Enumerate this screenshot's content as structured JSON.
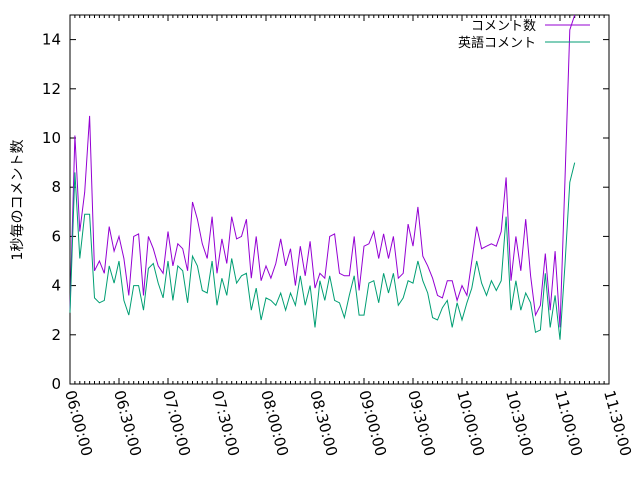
{
  "chart_data": {
    "type": "line",
    "ylabel": "1秒毎のコメント数",
    "xlabel": "",
    "ylim": [
      0,
      15
    ],
    "yticks": [
      0,
      2,
      4,
      6,
      8,
      10,
      12,
      14
    ],
    "xlim": [
      "06:00:00",
      "11:30:00"
    ],
    "xtick_labels": [
      "06:00:00",
      "06:30:00",
      "07:00:00",
      "07:30:00",
      "08:00:00",
      "08:30:00",
      "09:00:00",
      "09:30:00",
      "10:00:00",
      "10:30:00",
      "11:00:00",
      "11:30:00"
    ],
    "legend_position": "top-right",
    "grid": false,
    "x_interval_minutes": 3,
    "series": [
      {
        "name": "コメント数",
        "color": "#9400d3",
        "values": [
          3.0,
          10.1,
          6.2,
          7.8,
          10.9,
          4.6,
          5.0,
          4.5,
          6.4,
          5.4,
          6.0,
          5.1,
          3.6,
          6.0,
          6.1,
          3.6,
          6.0,
          5.5,
          4.8,
          4.5,
          6.2,
          4.8,
          5.7,
          5.5,
          4.6,
          7.4,
          6.7,
          5.7,
          5.1,
          6.8,
          4.5,
          5.9,
          4.9,
          6.8,
          5.9,
          6.0,
          6.7,
          4.3,
          6.0,
          4.2,
          4.8,
          4.3,
          4.9,
          5.9,
          4.8,
          5.5,
          4.0,
          5.6,
          4.4,
          5.8,
          3.9,
          4.5,
          4.3,
          6.0,
          6.1,
          4.5,
          4.4,
          4.4,
          6.0,
          3.8,
          5.6,
          5.7,
          6.2,
          5.1,
          6.1,
          5.1,
          6.0,
          4.3,
          4.5,
          6.5,
          5.6,
          7.2,
          5.2,
          4.8,
          4.3,
          3.6,
          3.5,
          4.2,
          4.2,
          3.4,
          4.0,
          3.6,
          5.0,
          6.4,
          5.5,
          5.6,
          5.7,
          5.6,
          6.2,
          8.4,
          4.2,
          6.0,
          4.6,
          6.7,
          4.4,
          2.8,
          3.2,
          5.3,
          3.0,
          5.4,
          2.3,
          8.2,
          14.4,
          15.0
        ]
      },
      {
        "name": "英語コメント",
        "color": "#009e73",
        "values": [
          2.9,
          8.6,
          5.1,
          6.9,
          6.9,
          3.5,
          3.3,
          3.4,
          4.8,
          4.1,
          5.0,
          3.4,
          2.8,
          4.0,
          4.0,
          3.0,
          4.7,
          4.9,
          4.1,
          3.5,
          5.0,
          3.4,
          4.8,
          4.6,
          3.3,
          5.2,
          4.8,
          3.8,
          3.7,
          5.0,
          3.2,
          4.3,
          3.6,
          5.1,
          4.1,
          4.4,
          4.5,
          3.0,
          3.9,
          2.6,
          3.5,
          3.4,
          3.2,
          3.7,
          3.0,
          3.7,
          3.2,
          4.4,
          3.2,
          4.0,
          2.3,
          4.2,
          3.4,
          4.4,
          3.4,
          3.3,
          2.7,
          3.6,
          4.4,
          2.8,
          2.8,
          4.1,
          4.2,
          3.3,
          4.5,
          3.7,
          4.5,
          3.2,
          3.5,
          4.2,
          4.1,
          5.0,
          4.2,
          3.7,
          2.7,
          2.6,
          3.1,
          3.4,
          2.3,
          3.3,
          2.6,
          3.3,
          3.9,
          5.0,
          4.1,
          3.6,
          4.2,
          3.8,
          4.2,
          6.8,
          3.0,
          4.2,
          3.0,
          3.7,
          3.3,
          2.1,
          2.2,
          4.5,
          2.3,
          3.6,
          1.8,
          4.8,
          8.2,
          9.0
        ]
      }
    ]
  }
}
